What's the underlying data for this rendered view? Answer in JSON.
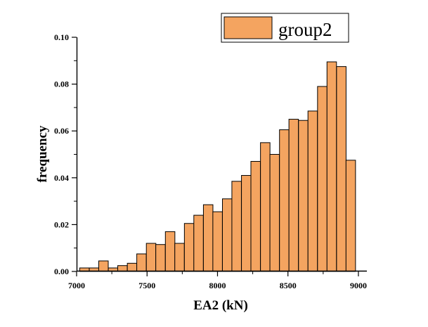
{
  "chart_data": {
    "type": "bar",
    "title": "",
    "xlabel": "EA2 (kN)",
    "ylabel": "frequency",
    "xlim": [
      7000,
      9060
    ],
    "ylim": [
      0,
      0.1
    ],
    "x_ticks": [
      "7000",
      "7500",
      "8000",
      "8500",
      "9000"
    ],
    "y_ticks": [
      "0.00",
      "0.02",
      "0.04",
      "0.06",
      "0.08",
      "0.10"
    ],
    "grid": false,
    "legend_position": "top-right",
    "bar_color": "#F4A460",
    "bin_width": 67.5,
    "series": [
      {
        "name": "group2",
        "bin_starts": [
          7022,
          7090,
          7157,
          7225,
          7292,
          7360,
          7427,
          7495,
          7562,
          7630,
          7697,
          7765,
          7832,
          7900,
          7967,
          8035,
          8102,
          8170,
          8237,
          8305,
          8372,
          8440,
          8507,
          8575,
          8642,
          8710,
          8777,
          8845,
          8912,
          8980
        ],
        "values": [
          0.0015,
          0.0015,
          0.0045,
          0.0015,
          0.0025,
          0.0035,
          0.0075,
          0.012,
          0.0115,
          0.017,
          0.012,
          0.0205,
          0.024,
          0.0285,
          0.0255,
          0.031,
          0.0385,
          0.041,
          0.047,
          0.055,
          0.05,
          0.0605,
          0.065,
          0.0645,
          0.0685,
          0.079,
          0.0895,
          0.0875,
          0.0475,
          0.0
        ]
      }
    ]
  }
}
